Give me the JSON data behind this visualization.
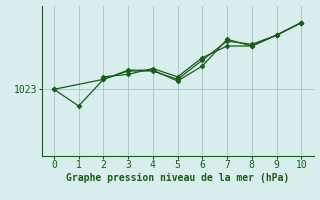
{
  "background_color": "#d8eeed",
  "grid_color": "#aacaca",
  "line_color": "#1a5c1a",
  "xlabel": "Graphe pression niveau de la mer (hPa)",
  "xlabel_color": "#1a5c1a",
  "ytick_label": "1023",
  "ytick_value": 1023,
  "xlim": [
    -0.5,
    10.5
  ],
  "ylim": [
    1015,
    1033
  ],
  "line1_x": [
    0,
    1,
    2,
    3,
    4,
    5,
    6,
    7,
    8,
    9,
    10
  ],
  "line1_y": [
    1023,
    1021.0,
    1024.2,
    1025.3,
    1025.3,
    1024.0,
    1025.8,
    1029.0,
    1028.2,
    1029.5,
    1031.0
  ],
  "line2_x": [
    0,
    2,
    3,
    4,
    5,
    6,
    7,
    8,
    9,
    10
  ],
  "line2_y": [
    1023,
    1024.2,
    1025.2,
    1025.2,
    1024.2,
    1026.5,
    1028.8,
    1028.4,
    1029.5,
    1031.0
  ],
  "line3_x": [
    2,
    3,
    4,
    5,
    6,
    7,
    8,
    9,
    10
  ],
  "line3_y": [
    1024.5,
    1024.8,
    1025.5,
    1024.5,
    1026.8,
    1028.2,
    1028.2,
    1029.5,
    1031.0
  ],
  "xticks": [
    0,
    1,
    2,
    3,
    4,
    5,
    6,
    7,
    8,
    9,
    10
  ],
  "font_size": 7,
  "marker_size": 2.5,
  "linewidth": 0.9
}
